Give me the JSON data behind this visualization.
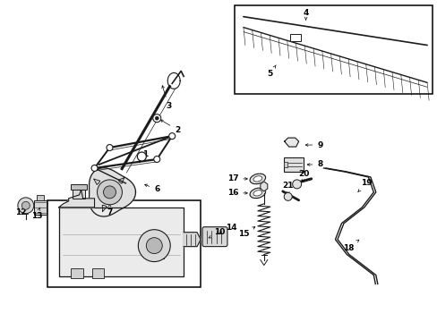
{
  "background_color": "#ffffff",
  "fig_width": 4.89,
  "fig_height": 3.6,
  "dpi": 100,
  "line_color": "#1a1a1a",
  "label_positions": {
    "1": [
      1.62,
      1.88,
      1.55,
      1.72
    ],
    "2": [
      1.98,
      1.72,
      1.82,
      1.72
    ],
    "3": [
      1.88,
      2.12,
      1.78,
      2.05
    ],
    "4": [
      3.42,
      3.38,
      3.42,
      3.3
    ],
    "5": [
      3.05,
      2.75,
      3.1,
      2.82
    ],
    "6": [
      1.62,
      1.48,
      1.52,
      1.52
    ],
    "7": [
      1.38,
      1.28,
      1.38,
      1.38
    ],
    "8": [
      3.6,
      1.78,
      3.46,
      1.78
    ],
    "9": [
      3.6,
      1.98,
      3.42,
      1.98
    ],
    "10": [
      2.3,
      1.52,
      2.08,
      1.48
    ],
    "11": [
      1.88,
      1.22,
      1.72,
      1.3
    ],
    "12": [
      0.3,
      1.3,
      0.3,
      1.38
    ],
    "13": [
      0.48,
      1.22,
      0.44,
      1.3
    ],
    "14": [
      2.48,
      1.62,
      2.32,
      1.62
    ],
    "15": [
      2.72,
      1.05,
      2.84,
      1.15
    ],
    "16": [
      2.6,
      1.45,
      2.78,
      1.45
    ],
    "17": [
      2.6,
      1.6,
      2.76,
      1.58
    ],
    "18": [
      3.88,
      0.82,
      3.98,
      0.92
    ],
    "19": [
      4.08,
      1.52,
      4.0,
      1.42
    ],
    "20": [
      3.38,
      1.6,
      3.32,
      1.52
    ],
    "21": [
      3.22,
      1.48,
      3.18,
      1.4
    ]
  }
}
